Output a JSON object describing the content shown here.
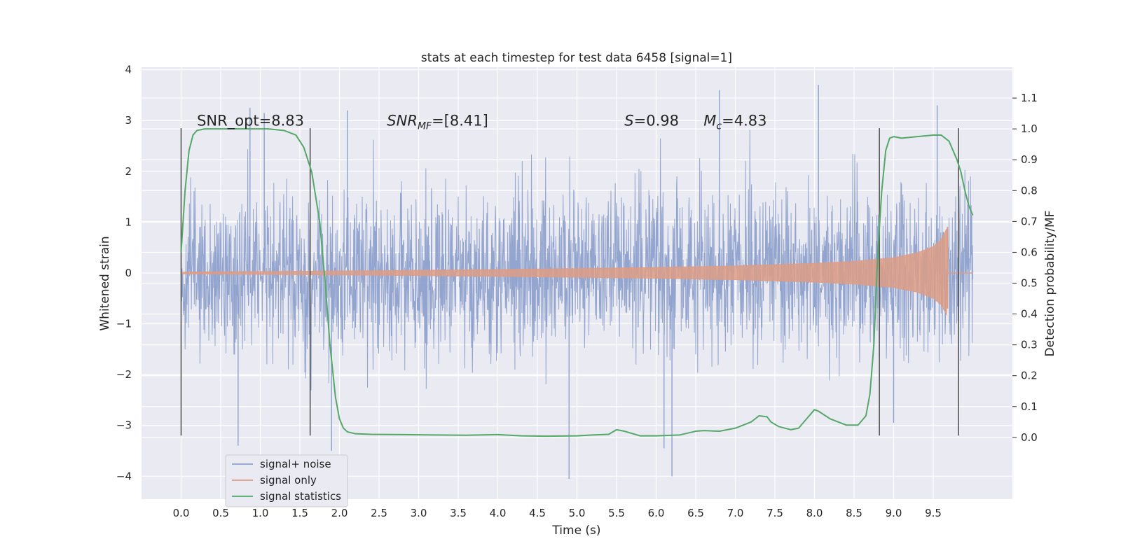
{
  "chart_data": {
    "type": "line",
    "title": "stats at each timestep for test data 6458 [signal=1]",
    "xlabel": "Time (s)",
    "ylabel": "Whitened strain",
    "ylabel_right": "Detection probability/MF",
    "xlim": [
      -0.5,
      10.5
    ],
    "ylim": [
      -4.45,
      4.05
    ],
    "ylim_right": [
      -0.2,
      1.2
    ],
    "x_ticks": [
      0.0,
      0.5,
      1.0,
      1.5,
      2.0,
      2.5,
      3.0,
      3.5,
      4.0,
      4.5,
      5.0,
      5.5,
      6.0,
      6.5,
      7.0,
      7.5,
      8.0,
      8.5,
      9.0,
      9.5
    ],
    "x_tick_labels": [
      "0.0",
      "0.5",
      "1.0",
      "1.5",
      "2.0",
      "2.5",
      "3.0",
      "3.5",
      "4.0",
      "4.5",
      "5.0",
      "5.5",
      "6.0",
      "6.5",
      "7.0",
      "7.5",
      "8.0",
      "8.5",
      "9.0",
      "9.5"
    ],
    "y_ticks": [
      -4,
      -3,
      -2,
      -1,
      0,
      1,
      2,
      3,
      4
    ],
    "y_tick_labels": [
      "−4",
      "−3",
      "−2",
      "−1",
      "0",
      "1",
      "2",
      "3",
      "4"
    ],
    "y2_ticks": [
      0.0,
      0.1,
      0.2,
      0.3,
      0.4,
      0.5,
      0.6,
      0.7,
      0.8,
      0.9,
      1.0,
      1.1
    ],
    "y2_tick_labels": [
      "0.0",
      "0.1",
      "0.2",
      "0.3",
      "0.4",
      "0.5",
      "0.6",
      "0.7",
      "0.8",
      "0.9",
      "1.0",
      "1.1"
    ],
    "grid": true,
    "legend_position": "lower-left",
    "annotations": [
      {
        "id": "snr-opt",
        "text": "SNR_opt=8.83",
        "x": 0.2,
        "y": 2.9
      },
      {
        "id": "snr-mf",
        "text_main": "SNR",
        "text_sub": "MF",
        "text_tail": "=[8.41]",
        "x": 2.6,
        "y": 2.9
      },
      {
        "id": "s-stat",
        "text_main": "S",
        "text_tail": "=0.98",
        "x": 5.6,
        "y": 2.9
      },
      {
        "id": "chirp-mass",
        "text_main": "M",
        "text_sub": "c",
        "text_tail": "=4.83",
        "x": 6.6,
        "y": 2.9
      }
    ],
    "vertical_markers": [
      {
        "x": 0.0,
        "y_range": [
          -3.2,
          2.85
        ]
      },
      {
        "x": 1.63,
        "y_range": [
          -3.2,
          2.85
        ]
      },
      {
        "x": 8.82,
        "y_range": [
          -3.2,
          2.85
        ]
      },
      {
        "x": 9.82,
        "y_range": [
          -3.2,
          2.85
        ]
      }
    ],
    "series": [
      {
        "name": "signal+ noise",
        "color": "#8ea1cc",
        "axis": "left",
        "kind": "noise",
        "x_range": [
          0.0,
          10.0
        ],
        "typical_envelope": [
          -1.1,
          1.1
        ],
        "noise_std": 0.8,
        "peaks": [
          {
            "x": 0.72,
            "y": -3.4
          },
          {
            "x": 0.87,
            "y": 3.25
          },
          {
            "x": 1.05,
            "y": 3.15
          },
          {
            "x": 1.9,
            "y": -3.5
          },
          {
            "x": 2.1,
            "y": 3.2
          },
          {
            "x": 4.9,
            "y": -4.05
          },
          {
            "x": 6.1,
            "y": -3.45
          },
          {
            "x": 6.2,
            "y": -4.0
          },
          {
            "x": 6.8,
            "y": 3.6
          },
          {
            "x": 8.05,
            "y": 3.7
          },
          {
            "x": 9.55,
            "y": 3.3
          },
          {
            "x": 9.0,
            "y": -2.95
          }
        ]
      },
      {
        "name": "signal only",
        "color": "#dd9c85",
        "axis": "left",
        "kind": "chirp",
        "x_range": [
          0.0,
          10.0
        ],
        "merger_time": 9.68,
        "amplitude": [
          {
            "x": 0.0,
            "y": 0.02
          },
          {
            "x": 2.0,
            "y": 0.04
          },
          {
            "x": 4.0,
            "y": 0.07
          },
          {
            "x": 6.0,
            "y": 0.11
          },
          {
            "x": 7.0,
            "y": 0.14
          },
          {
            "x": 8.0,
            "y": 0.19
          },
          {
            "x": 8.5,
            "y": 0.23
          },
          {
            "x": 9.0,
            "y": 0.3
          },
          {
            "x": 9.3,
            "y": 0.4
          },
          {
            "x": 9.5,
            "y": 0.52
          },
          {
            "x": 9.6,
            "y": 0.66
          },
          {
            "x": 9.68,
            "y": 0.9
          }
        ],
        "peak_high": 0.9,
        "peak_low": -0.7
      },
      {
        "name": "signal statistics",
        "color": "#55a868",
        "axis": "right",
        "kind": "line",
        "x": [
          0.0,
          0.05,
          0.1,
          0.15,
          0.2,
          0.3,
          0.5,
          0.8,
          1.1,
          1.3,
          1.45,
          1.55,
          1.65,
          1.75,
          1.82,
          1.88,
          1.95,
          2.0,
          2.05,
          2.1,
          2.2,
          2.4,
          2.8,
          3.2,
          3.6,
          4.0,
          4.3,
          4.6,
          5.0,
          5.2,
          5.4,
          5.5,
          5.6,
          5.8,
          6.0,
          6.3,
          6.5,
          6.6,
          6.8,
          7.0,
          7.2,
          7.3,
          7.4,
          7.45,
          7.55,
          7.7,
          7.8,
          7.9,
          8.0,
          8.05,
          8.2,
          8.4,
          8.55,
          8.65,
          8.7,
          8.75,
          8.8,
          8.85,
          8.9,
          8.95,
          9.0,
          9.1,
          9.3,
          9.5,
          9.6,
          9.7,
          9.8,
          9.85,
          9.9,
          9.95,
          10.0
        ],
        "y": [
          0.6,
          0.8,
          0.93,
          0.98,
          0.995,
          1.0,
          1.0,
          1.0,
          1.0,
          0.995,
          0.98,
          0.94,
          0.86,
          0.7,
          0.5,
          0.3,
          0.13,
          0.06,
          0.03,
          0.018,
          0.012,
          0.01,
          0.009,
          0.008,
          0.007,
          0.009,
          0.005,
          0.004,
          0.005,
          0.008,
          0.01,
          0.025,
          0.02,
          0.005,
          0.005,
          0.008,
          0.02,
          0.022,
          0.02,
          0.03,
          0.05,
          0.07,
          0.067,
          0.05,
          0.035,
          0.025,
          0.03,
          0.06,
          0.09,
          0.085,
          0.06,
          0.04,
          0.04,
          0.07,
          0.14,
          0.3,
          0.6,
          0.8,
          0.93,
          0.97,
          0.975,
          0.97,
          0.975,
          0.98,
          0.98,
          0.96,
          0.9,
          0.86,
          0.8,
          0.75,
          0.72
        ]
      }
    ]
  }
}
